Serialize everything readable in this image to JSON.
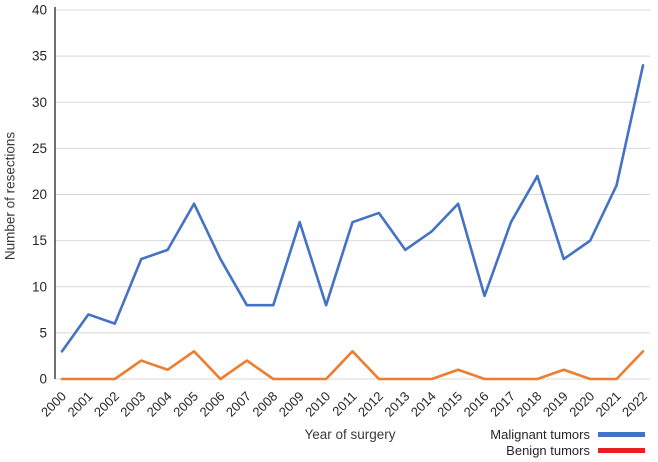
{
  "chart_data": {
    "type": "line",
    "title": "",
    "xlabel": "Year of surgery",
    "ylabel": "Number of resections",
    "categories": [
      "2000",
      "2001",
      "2002",
      "2003",
      "2004",
      "2005",
      "2006",
      "2007",
      "2008",
      "2009",
      "2010",
      "2011",
      "2012",
      "2013",
      "2014",
      "2015",
      "2016",
      "2017",
      "2018",
      "2019",
      "2020",
      "2021",
      "2022"
    ],
    "series": [
      {
        "name": "Malignant tumors",
        "line_color": "#4472C4",
        "legend_color": "#4472C4",
        "values": [
          3,
          7,
          6,
          13,
          14,
          19,
          13,
          8,
          8,
          17,
          8,
          17,
          18,
          14,
          16,
          19,
          9,
          17,
          22,
          13,
          15,
          21,
          34
        ]
      },
      {
        "name": "Benign tumors",
        "line_color": "#ED7D31",
        "legend_color": "#EC1C24",
        "values": [
          0,
          0,
          0,
          2,
          1,
          3,
          0,
          2,
          0,
          0,
          0,
          3,
          0,
          0,
          0,
          1,
          0,
          0,
          0,
          1,
          0,
          0,
          3
        ]
      }
    ],
    "ylim": [
      0,
      40
    ],
    "yticks": [
      0,
      5,
      10,
      15,
      20,
      25,
      30,
      35,
      40
    ],
    "grid": "horizontal",
    "legend_position": "bottom-right"
  },
  "colors": {
    "gridline": "#D9D9D9",
    "axis_line": "#333333",
    "tick_text": "#262626"
  }
}
